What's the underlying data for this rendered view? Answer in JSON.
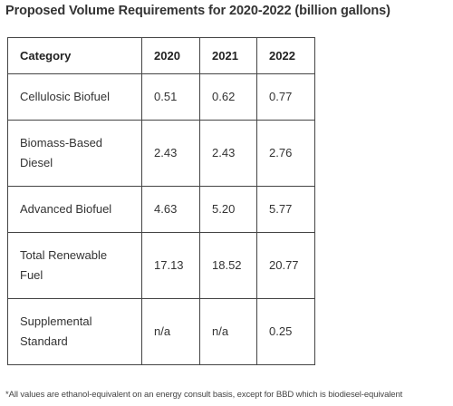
{
  "title": "Proposed Volume Requirements for 2020-2022 (billion gallons)",
  "table": {
    "headers": [
      "Category",
      "2020",
      "2021",
      "2022"
    ],
    "rows": [
      {
        "category": "Cellulosic Biofuel",
        "v2020": "0.51",
        "v2021": "0.62",
        "v2022": "0.77"
      },
      {
        "category": "Biomass-Based Diesel",
        "v2020": "2.43",
        "v2021": "2.43",
        "v2022": "2.76"
      },
      {
        "category": "Advanced Biofuel",
        "v2020": "4.63",
        "v2021": "5.20",
        "v2022": "5.77"
      },
      {
        "category": "Total Renewable Fuel",
        "v2020": "17.13",
        "v2021": "18.52",
        "v2022": "20.77"
      },
      {
        "category": "Supplemental Standard",
        "v2020": "n/a",
        "v2021": "n/a",
        "v2022": "0.25"
      }
    ]
  },
  "footnote": "*All values are ethanol-equivalent on an energy consult basis, except for BBD which is biodiesel-equivalent"
}
